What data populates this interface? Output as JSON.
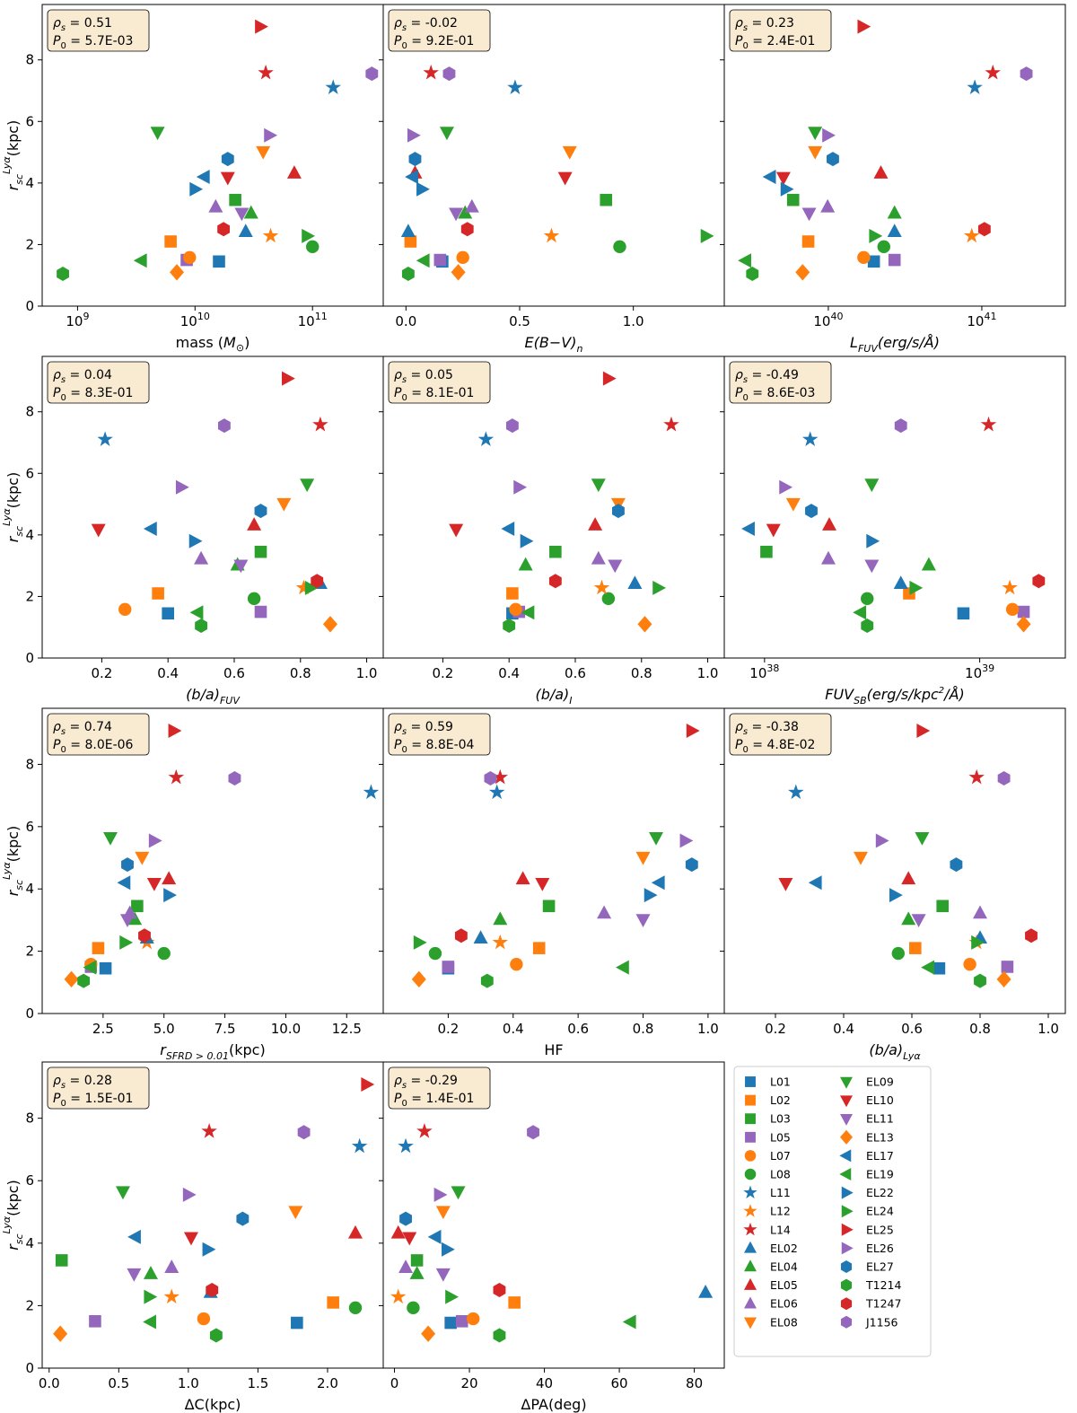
{
  "figure": {
    "ylabel": "r_sc^Lyα(kpc)",
    "legend": {
      "placement": "bottom-right",
      "entries": [
        "L01",
        "L02",
        "L03",
        "L05",
        "L07",
        "L08",
        "L11",
        "L12",
        "L14",
        "EL02",
        "EL04",
        "EL05",
        "EL06",
        "EL08",
        "EL09",
        "EL10",
        "EL11",
        "EL13",
        "EL17",
        "EL19",
        "EL22",
        "EL24",
        "EL25",
        "EL26",
        "EL27",
        "T1214",
        "T1247",
        "J1156"
      ]
    },
    "objects": {
      "L01": {
        "color": "#1f77b4",
        "marker": "square"
      },
      "L02": {
        "color": "#ff7f0e",
        "marker": "square"
      },
      "L03": {
        "color": "#2ca02c",
        "marker": "square"
      },
      "L05": {
        "color": "#9467bd",
        "marker": "square"
      },
      "L07": {
        "color": "#ff7f0e",
        "marker": "circle"
      },
      "L08": {
        "color": "#2ca02c",
        "marker": "circle"
      },
      "L11": {
        "color": "#1f77b4",
        "marker": "star"
      },
      "L12": {
        "color": "#ff7f0e",
        "marker": "star"
      },
      "L14": {
        "color": "#d62728",
        "marker": "star"
      },
      "EL02": {
        "color": "#1f77b4",
        "marker": "triangle-up"
      },
      "EL04": {
        "color": "#2ca02c",
        "marker": "triangle-up"
      },
      "EL05": {
        "color": "#d62728",
        "marker": "triangle-up"
      },
      "EL06": {
        "color": "#9467bd",
        "marker": "triangle-up"
      },
      "EL08": {
        "color": "#ff7f0e",
        "marker": "triangle-down"
      },
      "EL09": {
        "color": "#2ca02c",
        "marker": "triangle-down"
      },
      "EL10": {
        "color": "#d62728",
        "marker": "triangle-down"
      },
      "EL11": {
        "color": "#9467bd",
        "marker": "triangle-down"
      },
      "EL13": {
        "color": "#ff7f0e",
        "marker": "diamond"
      },
      "EL17": {
        "color": "#1f77b4",
        "marker": "triangle-left"
      },
      "EL19": {
        "color": "#2ca02c",
        "marker": "triangle-left"
      },
      "EL22": {
        "color": "#1f77b4",
        "marker": "triangle-right"
      },
      "EL24": {
        "color": "#2ca02c",
        "marker": "triangle-right"
      },
      "EL25": {
        "color": "#d62728",
        "marker": "triangle-right"
      },
      "EL26": {
        "color": "#9467bd",
        "marker": "triangle-right"
      },
      "EL27": {
        "color": "#1f77b4",
        "marker": "hexagon"
      },
      "T1214": {
        "color": "#2ca02c",
        "marker": "hexagon"
      },
      "T1247": {
        "color": "#d62728",
        "marker": "hexagon"
      },
      "J1156": {
        "color": "#9467bd",
        "marker": "hexagon"
      }
    },
    "y_values_kpc": {
      "L01": 1.45,
      "L02": 2.1,
      "L03": 3.45,
      "L05": 1.5,
      "L07": 1.58,
      "L08": 1.93,
      "L11": 7.1,
      "L12": 2.28,
      "L14": 7.58,
      "EL02": 2.42,
      "EL04": 3.02,
      "EL05": 4.32,
      "EL06": 3.22,
      "EL08": 5.02,
      "EL09": 5.65,
      "EL10": 4.18,
      "EL11": 3.02,
      "EL13": 1.1,
      "EL17": 4.2,
      "EL19": 1.48,
      "EL22": 3.8,
      "EL24": 2.28,
      "EL25": 9.08,
      "EL26": 5.55,
      "EL27": 4.78,
      "T1214": 1.05,
      "T1247": 2.5,
      "J1156": 7.55
    }
  },
  "chart_data": [
    {
      "type": "scatter",
      "xlabel": "mass (M⊙)",
      "x_scale": "log",
      "xlim": [
        500000000,
        400000000000
      ],
      "ylim": [
        0,
        9.8
      ],
      "xticks": [
        1000000000,
        10000000000,
        100000000000
      ],
      "xtick_labels": [
        "10^9",
        "10^10",
        "10^11"
      ],
      "rho_s": "0.51",
      "p0": "5.7E-03",
      "x": {
        "L01": 16000000000,
        "L02": 6200000000,
        "L03": 22000000000,
        "L05": 8500000000,
        "L07": 9000000000,
        "L08": 100000000000,
        "L11": 150000000000,
        "L12": 44000000000,
        "L14": 40000000000,
        "EL02": 27000000000,
        "EL04": 30000000000,
        "EL05": 70000000000,
        "EL06": 15000000000,
        "EL08": 38000000000,
        "EL09": 4800000000,
        "EL10": 19000000000,
        "EL11": 25000000000,
        "EL13": 7000000000,
        "EL17": 12000000000,
        "EL19": 3500000000,
        "EL22": 10000000000,
        "EL24": 90000000000,
        "EL25": 36000000000,
        "EL26": 43000000000,
        "EL27": 19000000000,
        "T1214": 750000000,
        "T1247": 17500000000,
        "J1156": 320000000000
      }
    },
    {
      "type": "scatter",
      "xlabel": "E(B−V)_n",
      "x_scale": "linear",
      "xlim": [
        -0.1,
        1.4
      ],
      "ylim": [
        0,
        9.8
      ],
      "xticks": [
        0.0,
        0.5,
        1.0
      ],
      "xtick_labels": [
        "0.0",
        "0.5",
        "1.0"
      ],
      "rho_s": "-0.02",
      "p0": "9.2E-01",
      "x": {
        "L01": 0.16,
        "L02": 0.02,
        "L03": 0.88,
        "L05": 0.15,
        "L07": 0.25,
        "L08": 0.94,
        "L11": 0.48,
        "L12": 0.64,
        "L14": 0.11,
        "EL02": 0.01,
        "EL04": 0.26,
        "EL05": 0.04,
        "EL06": 0.29,
        "EL08": 0.72,
        "EL09": 0.18,
        "EL10": 0.7,
        "EL11": 0.22,
        "EL13": 0.23,
        "EL17": 0.03,
        "EL19": 0.08,
        "EL22": 0.07,
        "EL24": 1.32,
        "EL25": 0.05,
        "EL26": 0.03,
        "EL27": 0.04,
        "T1214": 0.01,
        "T1247": 0.27,
        "J1156": 0.19
      }
    },
    {
      "type": "scatter",
      "xlabel": "L_FUV(erg/s/Å)",
      "x_scale": "log",
      "xlim": [
        2.1e+39,
        3.5e+41
      ],
      "ylim": [
        0,
        9.8
      ],
      "xticks": [
        1e+40,
        1e+41
      ],
      "xtick_labels": [
        "10^40",
        "10^41"
      ],
      "rho_s": "0.23",
      "p0": "2.4E-01",
      "x": {
        "L01": 1.98e+40,
        "L02": 7.4e+39,
        "L03": 5.9e+39,
        "L05": 2.7e+40,
        "L07": 1.7e+40,
        "L08": 2.3e+40,
        "L11": 9e+40,
        "L12": 8.6e+40,
        "L14": 1.18e+41,
        "EL02": 2.7e+40,
        "EL04": 2.7e+40,
        "EL05": 2.2e+40,
        "EL06": 9.9e+39,
        "EL08": 8.2e+39,
        "EL09": 8.2e+39,
        "EL10": 5.1e+39,
        "EL11": 7.5e+39,
        "EL13": 6.8e+39,
        "EL17": 4.2e+39,
        "EL19": 2.9e+39,
        "EL22": 5.3e+39,
        "EL24": 2e+40,
        "EL25": 1.68e+40,
        "EL26": 9.9e+39,
        "EL27": 1.07e+40,
        "T1214": 3.2e+39,
        "T1247": 1.04e+41,
        "J1156": 1.95e+41
      }
    },
    {
      "type": "scatter",
      "xlabel": "(b/a)_FUV",
      "x_scale": "linear",
      "xlim": [
        0.02,
        1.05
      ],
      "ylim": [
        0,
        9.8
      ],
      "xticks": [
        0.2,
        0.4,
        0.6,
        0.8,
        1.0
      ],
      "xtick_labels": [
        "0.2",
        "0.4",
        "0.6",
        "0.8",
        "1.0"
      ],
      "rho_s": "0.04",
      "p0": "8.3E-01",
      "x": {
        "L01": 0.4,
        "L02": 0.37,
        "L03": 0.68,
        "L05": 0.68,
        "L07": 0.27,
        "L08": 0.66,
        "L11": 0.21,
        "L12": 0.81,
        "L14": 0.86,
        "EL02": 0.86,
        "EL04": 0.61,
        "EL05": 0.66,
        "EL06": 0.5,
        "EL08": 0.75,
        "EL09": 0.82,
        "EL10": 0.19,
        "EL11": 0.62,
        "EL13": 0.89,
        "EL17": 0.35,
        "EL19": 0.49,
        "EL22": 0.48,
        "EL24": 0.83,
        "EL25": 0.76,
        "EL26": 0.44,
        "EL27": 0.68,
        "T1214": 0.5,
        "T1247": 0.85,
        "J1156": 0.57
      }
    },
    {
      "type": "scatter",
      "xlabel": "(b/a)_I",
      "x_scale": "linear",
      "xlim": [
        0.02,
        1.05
      ],
      "ylim": [
        0,
        9.8
      ],
      "xticks": [
        0.2,
        0.4,
        0.6,
        0.8,
        1.0
      ],
      "xtick_labels": [
        "0.2",
        "0.4",
        "0.6",
        "0.8",
        "1.0"
      ],
      "rho_s": "0.05",
      "p0": "8.1E-01",
      "x": {
        "L01": 0.41,
        "L02": 0.41,
        "L03": 0.54,
        "L05": 0.43,
        "L07": 0.42,
        "L08": 0.7,
        "L11": 0.33,
        "L12": 0.68,
        "L14": 0.89,
        "EL02": 0.78,
        "EL04": 0.45,
        "EL05": 0.66,
        "EL06": 0.67,
        "EL08": 0.73,
        "EL09": 0.67,
        "EL10": 0.24,
        "EL11": 0.72,
        "EL13": 0.81,
        "EL17": 0.4,
        "EL19": 0.46,
        "EL22": 0.45,
        "EL24": 0.85,
        "EL25": 0.7,
        "EL26": 0.43,
        "EL27": 0.73,
        "T1214": 0.4,
        "T1247": 0.54,
        "J1156": 0.41
      }
    },
    {
      "type": "scatter",
      "xlabel": "FUV_SB(erg/s/kpc²/Å)",
      "x_scale": "log",
      "xlim": [
        6.5e+37,
        2.5e+39
      ],
      "ylim": [
        0,
        9.8
      ],
      "xticks": [
        1e+38,
        1e+39
      ],
      "xtick_labels": [
        "10^38",
        "10^39"
      ],
      "rho_s": "-0.49",
      "p0": "8.6E-03",
      "x": {
        "L01": 8.4e+38,
        "L02": 4.7e+38,
        "L03": 1.02e+38,
        "L05": 1.6e+39,
        "L07": 1.42e+39,
        "L08": 3e+38,
        "L11": 1.63e+38,
        "L12": 1.38e+39,
        "L14": 1.1e+39,
        "EL02": 4.3e+38,
        "EL04": 5.8e+38,
        "EL05": 2e+38,
        "EL06": 1.98e+38,
        "EL08": 1.36e+38,
        "EL09": 3.15e+38,
        "EL10": 1.1e+38,
        "EL11": 3.15e+38,
        "EL13": 1.6e+39,
        "EL17": 8.5e+37,
        "EL19": 2.8e+38,
        "EL22": 3.15e+38,
        "EL24": 5e+38,
        "EL25": 1.45e+38,
        "EL26": 1.24e+38,
        "EL27": 1.65e+38,
        "T1214": 3e+38,
        "T1247": 1.88e+39,
        "J1156": 4.3e+38
      }
    },
    {
      "type": "scatter",
      "xlabel": "r_SFRD>0.01(kpc)",
      "x_scale": "linear",
      "xlim": [
        0,
        14
      ],
      "ylim": [
        0,
        9.8
      ],
      "xticks": [
        2.5,
        5.0,
        7.5,
        10.0,
        12.5
      ],
      "xtick_labels": [
        "2.5",
        "5.0",
        "7.5",
        "10.0",
        "12.5"
      ],
      "rho_s": "0.74",
      "p0": "8.0E-06",
      "x": {
        "L01": 2.6,
        "L02": 2.3,
        "L03": 3.9,
        "L05": 2.0,
        "L07": 2.0,
        "L08": 5.0,
        "L11": 13.5,
        "L12": 4.3,
        "L14": 5.5,
        "EL02": 4.3,
        "EL04": 3.8,
        "EL05": 5.2,
        "EL06": 3.6,
        "EL08": 4.1,
        "EL09": 2.8,
        "EL10": 4.6,
        "EL11": 3.5,
        "EL13": 1.2,
        "EL17": 3.4,
        "EL19": 2.0,
        "EL22": 5.2,
        "EL24": 3.4,
        "EL25": 5.4,
        "EL26": 4.6,
        "EL27": 3.5,
        "T1214": 1.7,
        "T1247": 4.2,
        "J1156": 7.9
      }
    },
    {
      "type": "scatter",
      "xlabel": "HF",
      "x_scale": "linear",
      "xlim": [
        0,
        1.05
      ],
      "ylim": [
        0,
        9.8
      ],
      "xticks": [
        0.2,
        0.4,
        0.6,
        0.8,
        1.0
      ],
      "xtick_labels": [
        "0.2",
        "0.4",
        "0.6",
        "0.8",
        "1.0"
      ],
      "rho_s": "0.59",
      "p0": "8.8E-04",
      "x": {
        "L01": 0.2,
        "L02": 0.48,
        "L03": 0.51,
        "L05": 0.2,
        "L07": 0.41,
        "L08": 0.16,
        "L11": 0.35,
        "L12": 0.36,
        "L14": 0.36,
        "EL02": 0.3,
        "EL04": 0.36,
        "EL05": 0.43,
        "EL06": 0.68,
        "EL08": 0.8,
        "EL09": 0.84,
        "EL10": 0.49,
        "EL11": 0.8,
        "EL13": 0.11,
        "EL17": 0.85,
        "EL19": 0.74,
        "EL22": 0.82,
        "EL24": 0.11,
        "EL25": 0.95,
        "EL26": 0.93,
        "EL27": 0.95,
        "T1214": 0.32,
        "T1247": 0.24,
        "J1156": 0.33
      }
    },
    {
      "type": "scatter",
      "xlabel": "(b/a)_Lyα",
      "x_scale": "linear",
      "xlim": [
        0.05,
        1.05
      ],
      "ylim": [
        0,
        9.8
      ],
      "xticks": [
        0.2,
        0.4,
        0.6,
        0.8,
        1.0
      ],
      "xtick_labels": [
        "0.2",
        "0.4",
        "0.6",
        "0.8",
        "1.0"
      ],
      "rho_s": "-0.38",
      "p0": "4.8E-02",
      "x": {
        "L01": 0.68,
        "L02": 0.61,
        "L03": 0.69,
        "L05": 0.88,
        "L07": 0.77,
        "L08": 0.56,
        "L11": 0.26,
        "L12": 0.79,
        "L14": 0.79,
        "EL02": 0.8,
        "EL04": 0.59,
        "EL05": 0.59,
        "EL06": 0.8,
        "EL08": 0.45,
        "EL09": 0.63,
        "EL10": 0.23,
        "EL11": 0.62,
        "EL13": 0.87,
        "EL17": 0.32,
        "EL19": 0.65,
        "EL22": 0.55,
        "EL24": 0.79,
        "EL25": 0.63,
        "EL26": 0.51,
        "EL27": 0.73,
        "T1214": 0.8,
        "T1247": 0.95,
        "J1156": 0.87
      }
    },
    {
      "type": "scatter",
      "xlabel": "ΔC(kpc)",
      "x_scale": "linear",
      "xlim": [
        -0.05,
        2.4
      ],
      "ylim": [
        0,
        9.8
      ],
      "xticks": [
        0.0,
        0.5,
        1.0,
        1.5,
        2.0
      ],
      "xtick_labels": [
        "0.0",
        "0.5",
        "1.0",
        "1.5",
        "2.0"
      ],
      "rho_s": "0.28",
      "p0": "1.5E-01",
      "x": {
        "L01": 1.78,
        "L02": 2.04,
        "L03": 0.09,
        "L05": 0.33,
        "L07": 1.11,
        "L08": 2.2,
        "L11": 2.23,
        "L12": 0.88,
        "L14": 1.15,
        "EL02": 1.16,
        "EL04": 0.73,
        "EL05": 2.2,
        "EL06": 0.88,
        "EL08": 1.77,
        "EL09": 0.53,
        "EL10": 1.02,
        "EL11": 0.61,
        "EL13": 0.08,
        "EL17": 0.62,
        "EL19": 0.73,
        "EL22": 1.14,
        "EL24": 0.72,
        "EL25": 2.28,
        "EL26": 1.0,
        "EL27": 1.39,
        "T1214": 1.2,
        "T1247": 1.17,
        "J1156": 1.83
      }
    },
    {
      "type": "scatter",
      "xlabel": "ΔPA(deg)",
      "x_scale": "linear",
      "xlim": [
        -3,
        88
      ],
      "ylim": [
        0,
        9.8
      ],
      "xticks": [
        0,
        20,
        40,
        60,
        80
      ],
      "xtick_labels": [
        "0",
        "20",
        "40",
        "60",
        "80"
      ],
      "rho_s": "-0.29",
      "p0": "1.4E-01",
      "x": {
        "L01": 15,
        "L02": 32,
        "L03": 6,
        "L05": 18,
        "L07": 21,
        "L08": 5,
        "L11": 3,
        "L12": 1,
        "L14": 8,
        "EL02": 83,
        "EL04": 6,
        "EL05": 1,
        "EL06": 3,
        "EL08": 13,
        "EL09": 17,
        "EL10": 4,
        "EL11": 13,
        "EL13": 9,
        "EL17": 11,
        "EL19": 63,
        "EL22": 14,
        "EL24": 15,
        "EL25": 17,
        "EL26": 12,
        "EL27": 3,
        "T1214": 28,
        "T1247": 28,
        "J1156": 37
      }
    }
  ]
}
